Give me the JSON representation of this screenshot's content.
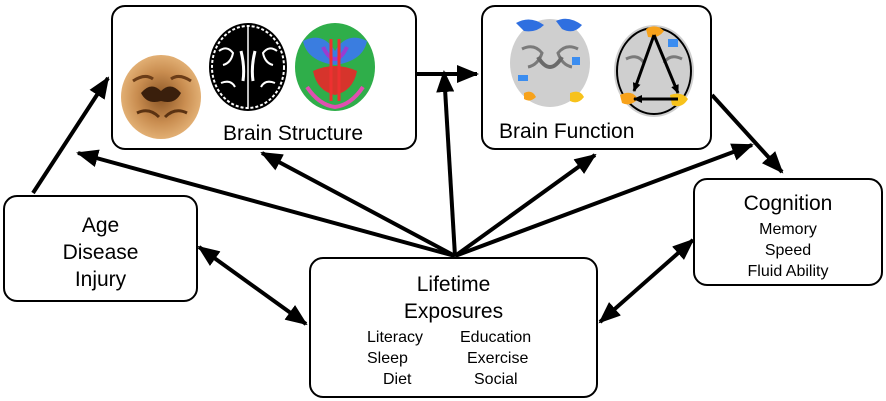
{
  "brain_structure": {
    "title": "Brain Structure",
    "images": [
      "t1-brain-scan-icon",
      "segmentation-brain-scan-icon",
      "diffusion-color-brain-scan-icon"
    ]
  },
  "brain_function": {
    "title": "Brain Function",
    "images": [
      "activation-map-brain-scan-icon",
      "connectivity-brain-scan-icon"
    ]
  },
  "risk_factors": {
    "lines": [
      "Age",
      "Disease",
      "Injury"
    ]
  },
  "cognition": {
    "title": "Cognition",
    "items": [
      "Memory",
      "Speed",
      "Fluid Ability"
    ]
  },
  "lifetime_exposures": {
    "title_line1": "Lifetime",
    "title_line2": "Exposures",
    "left_items": [
      "Literacy",
      "Sleep",
      "Diet"
    ],
    "right_items": [
      "Education",
      "Exercise",
      "Social"
    ]
  },
  "colors": {
    "stroke": "#000000",
    "background": "#ffffff",
    "t1_tone": "#c58a4e",
    "activation_blue": "#2f6fe0",
    "activation_orange": "#f7a21b"
  }
}
